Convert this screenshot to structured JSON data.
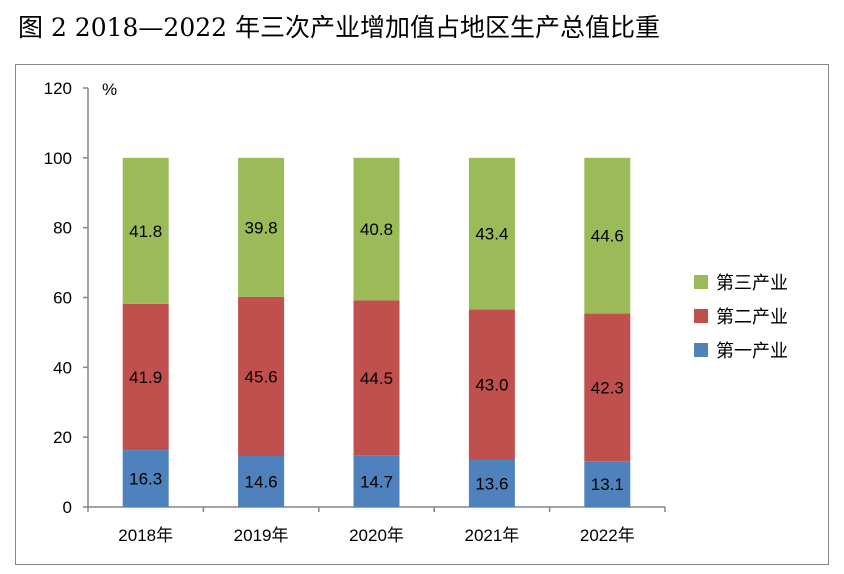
{
  "title": "图 2   2018—2022 年三次产业增加值占地区生产总值比重",
  "chart_data": {
    "type": "stacked-bar",
    "title": "图 2   2018—2022 年三次产业增加值占地区生产总值比重",
    "ylabel": "%",
    "xlabel": "",
    "ylim": [
      0,
      120
    ],
    "yticks": [
      0,
      20,
      40,
      60,
      80,
      100,
      120
    ],
    "grid": false,
    "legend_position": "right",
    "categories": [
      "2018年",
      "2019年",
      "2020年",
      "2021年",
      "2022年"
    ],
    "series": [
      {
        "name": "第一产业",
        "color": "#4F81BD",
        "values": [
          16.3,
          14.6,
          14.7,
          13.6,
          13.1
        ]
      },
      {
        "name": "第二产业",
        "color": "#C0504D",
        "values": [
          41.9,
          45.6,
          44.5,
          43.0,
          42.3
        ]
      },
      {
        "name": "第三产业",
        "color": "#9BBB59",
        "values": [
          41.8,
          39.8,
          40.8,
          43.4,
          44.6
        ]
      }
    ]
  }
}
